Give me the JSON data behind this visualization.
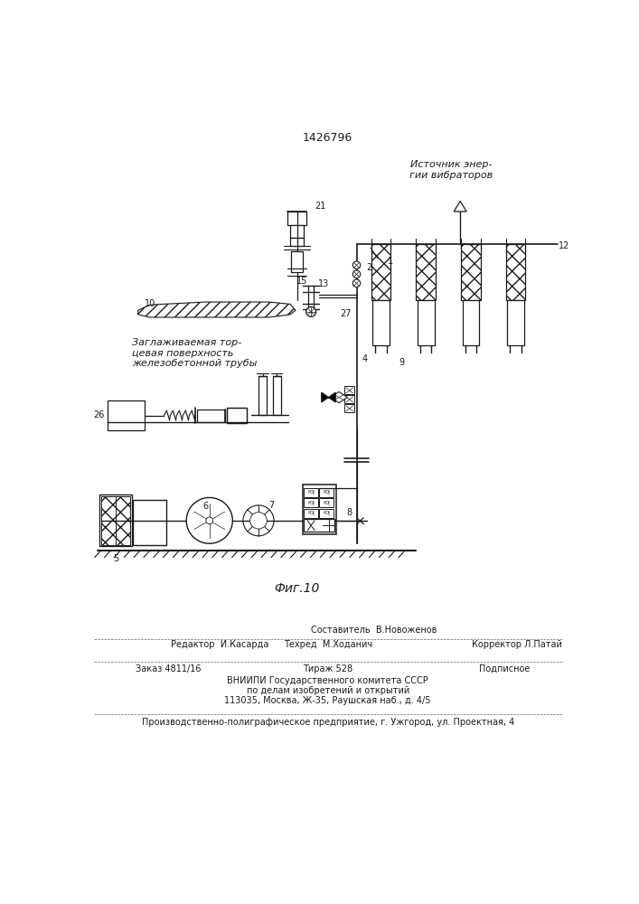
{
  "patent_number": "1426796",
  "figure_caption": "Фиг.10",
  "source_label": "Источник энер-\nгии вибраторов",
  "annotation_label": "Заглаживаемая тор-\nцевая поверхность\nжелезобетонной трубы",
  "bg_color": "#ffffff",
  "line_color": "#1a1a1a",
  "text_color": "#1a1a1a",
  "footer_editor": "Редактор  И.Касарда",
  "footer_techred": "Техред  М.Ходанич",
  "footer_corrector": "Корректор Л.Патай",
  "footer_composer": "Составитель  В.Новоженов",
  "footer_order": "Заказ 4811/16",
  "footer_tirazh": "Тираж 528",
  "footer_podpisnoe": "Подписное",
  "footer_vniipи1": "ВНИИПИ Государственного комитета СССР",
  "footer_vniipи2": "по делам изобретений и открытий",
  "footer_vniipи3": "113035, Москва, Ж-35, Раушская наб., д. 4/5",
  "footer_plant": "Производственно-полиграфическое предприятие, г. Ужгород, ул. Проектная, 4"
}
